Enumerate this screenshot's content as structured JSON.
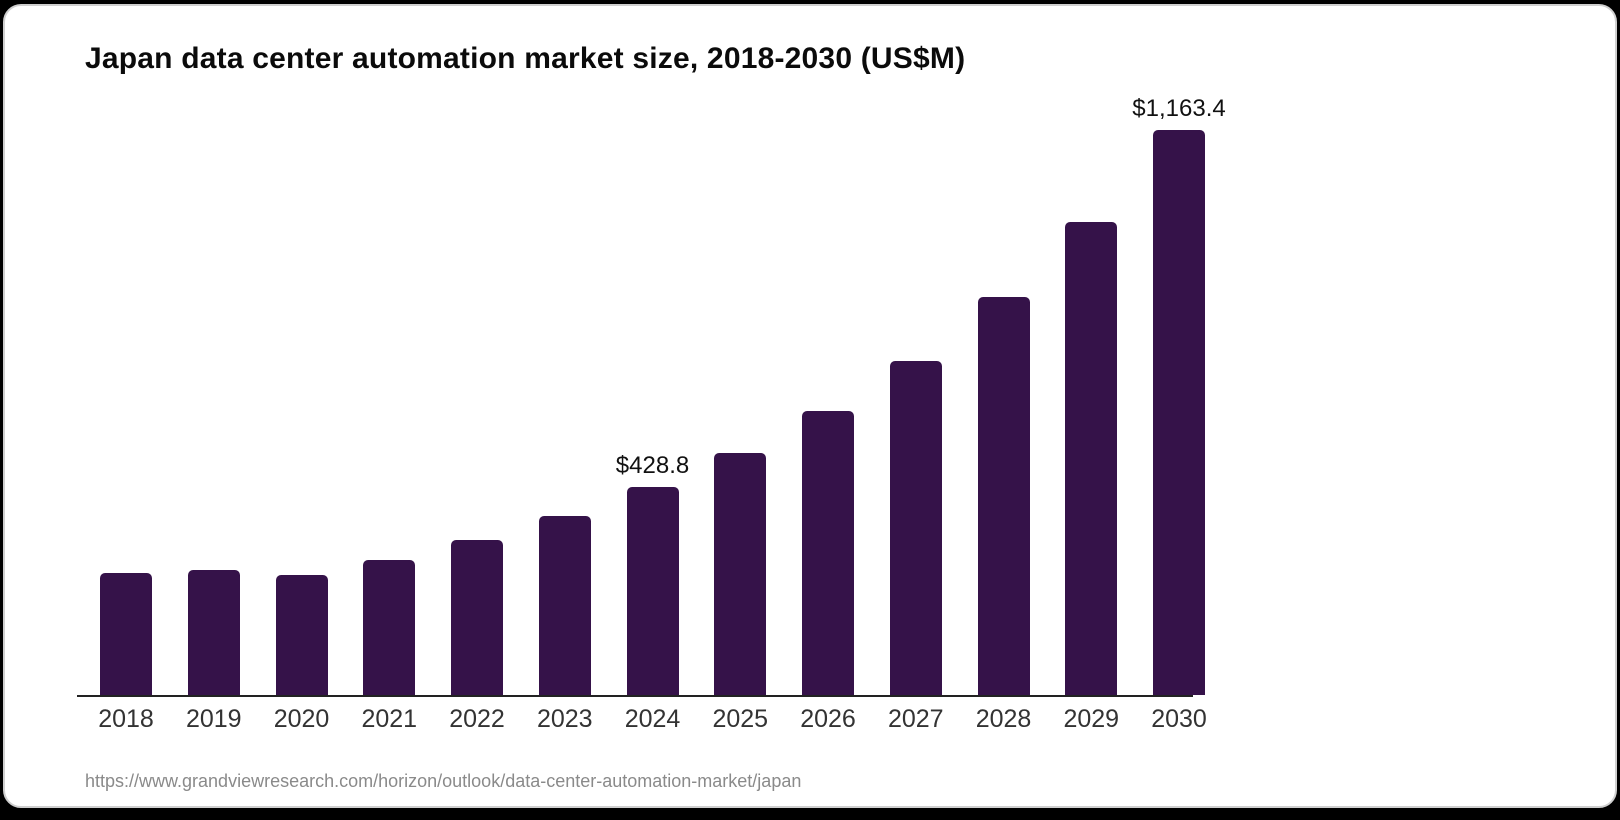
{
  "page": {
    "title": "Japan data center automation market size, 2018-2030 (US$M)",
    "source_url": "https://www.grandviewresearch.com/horizon/outlook/data-center-automation-market/japan"
  },
  "colors": {
    "bar": "#351249",
    "axis": "#222222",
    "title_text": "#0b0b0b",
    "tick_text": "#333333",
    "source_text": "#8a8a8a",
    "card_background": "#ffffff",
    "outer_background": "#000000"
  },
  "chart_data": {
    "type": "bar",
    "title": "Japan data center automation market size, 2018-2030 (US$M)",
    "unit": "US$M",
    "categories": [
      "2018",
      "2019",
      "2020",
      "2021",
      "2022",
      "2023",
      "2024",
      "2025",
      "2026",
      "2027",
      "2028",
      "2029",
      "2030"
    ],
    "values": [
      250.9,
      256.9,
      246.9,
      277.7,
      319.2,
      369.5,
      428.8,
      497.4,
      585.0,
      688.0,
      818.7,
      974.0,
      1163.4
    ],
    "bar_labels": [
      "",
      "",
      "",
      "",
      "",
      "",
      "$428.8",
      "",
      "",
      "",
      "",
      "",
      "$1,163.4"
    ],
    "labeled_points": [
      {
        "category": "2024",
        "label": "$428.8",
        "value": 428.8
      },
      {
        "category": "2030",
        "label": "$1,163.4",
        "value": 1163.4
      }
    ],
    "xlabel": "",
    "ylabel": "",
    "ylim": [
      0,
      1200
    ],
    "y_axis_visible": false,
    "grid": false,
    "legend": "none",
    "bar_color": "#351249"
  }
}
